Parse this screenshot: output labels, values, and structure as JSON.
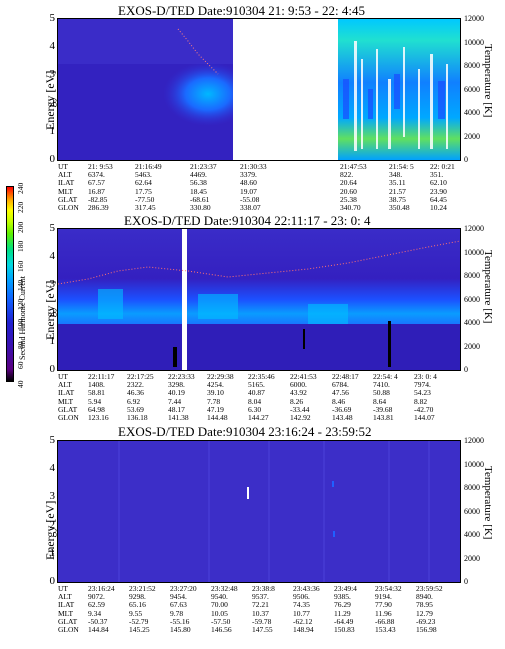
{
  "panels": [
    {
      "title": "EXOS-D/TED  Date:910304  21: 9:53 - 22: 4:45",
      "ylabel": "Energy [eV]",
      "rlabel": "Temperature [K]",
      "yticks": [
        "5",
        "4",
        "3",
        "2",
        "1",
        "0"
      ],
      "rticks": [
        "12000",
        "10000",
        "8000",
        "6000",
        "4000",
        "2000",
        "0"
      ],
      "ephem_labels": [
        "UT",
        "ALT",
        "ILAT",
        "MLT",
        "GLAT",
        "GLON"
      ],
      "ephem_cols": [
        [
          "21: 9:53",
          "6374.",
          "67.57",
          "16.87",
          "-82.85",
          "286.39"
        ],
        [
          "21:16:49",
          "5463.",
          "62.64",
          "17.75",
          "-77.50",
          "317.45"
        ],
        [
          "21:23:37",
          "4469.",
          "56.38",
          "18.45",
          "-68.61",
          "330.80"
        ],
        [
          "21:30:33",
          "3379.",
          "48.60",
          "19.07",
          "-55.08",
          "338.07"
        ],
        [
          "21:47:53",
          "822.",
          "20.64",
          "20.60",
          "25.38",
          "340.70"
        ],
        [
          "21:54: 5",
          "348.",
          "35.11",
          "21.57",
          "38.75",
          "350.48"
        ],
        [
          "22: 0:21",
          "351.",
          "62.10",
          "23.90",
          "64.45",
          "10.24"
        ]
      ]
    },
    {
      "title": "EXOS-D/TED    Date:910304   22:11:17 - 23: 0: 4",
      "ylabel": "Energy [eV]",
      "rlabel": "Temperature [K]",
      "yticks": [
        "5",
        "4",
        "3",
        "2",
        "1",
        "0"
      ],
      "rticks": [
        "12000",
        "10000",
        "8000",
        "6000",
        "4000",
        "2000",
        "0"
      ],
      "ephem_labels": [
        "UT",
        "ALT",
        "ILAT",
        "MLT",
        "GLAT",
        "GLON"
      ],
      "ephem_cols": [
        [
          "22:11:17",
          "1408.",
          "58.81",
          "5.94",
          "64.98",
          "123.16"
        ],
        [
          "22:17:25",
          "2322.",
          "46.36",
          "6.92",
          "53.69",
          "136.18"
        ],
        [
          "22:23:33",
          "3298.",
          "40.19",
          "7.44",
          "48.17",
          "141.38"
        ],
        [
          "22:29:38",
          "4254.",
          "39.10",
          "7.78",
          "47.19",
          "144.48"
        ],
        [
          "22:35:46",
          "5165.",
          "40.87",
          "8.04",
          "6.30",
          "144.27"
        ],
        [
          "22:41:53",
          "6000.",
          "43.92",
          "8.26",
          "-33.44",
          "142.92"
        ],
        [
          "22:48:17",
          "6784.",
          "47.56",
          "8.46",
          "-36.69",
          "143.48"
        ],
        [
          "22:54: 4",
          "7410.",
          "50.88",
          "8.64",
          "-39.68",
          "143.81"
        ],
        [
          "23: 0: 4",
          "7974.",
          "54.23",
          "8.82",
          "-42.70",
          "144.07"
        ]
      ]
    },
    {
      "title": "EXOS-D/TED  Date:910304  23:16:24 - 23:59:52",
      "ylabel": "Energy [eV]",
      "rlabel": "Temperature [K]",
      "yticks": [
        "5",
        "4",
        "3",
        "2",
        "1",
        "0"
      ],
      "rticks": [
        "12000",
        "10000",
        "8000",
        "6000",
        "4000",
        "2000",
        "0"
      ],
      "ephem_labels": [
        "UT",
        "ALT",
        "ILAT",
        "MLT",
        "GLAT",
        "GLON"
      ],
      "ephem_cols": [
        [
          "23:16:24",
          "9072.",
          "62.59",
          "9.34",
          "-50.37",
          "144.84"
        ],
        [
          "23:21:52",
          "9298.",
          "65.16",
          "9.55",
          "-52.79",
          "145.25"
        ],
        [
          "23:27:20",
          "9454.",
          "67.63",
          "9.78",
          "-55.16",
          "145.80"
        ],
        [
          "23:32:48",
          "9540.",
          "70.00",
          "10.05",
          "-57.50",
          "146.56"
        ],
        [
          "23:38:8",
          "9537.",
          "72.21",
          "10.37",
          "-59.78",
          "147.55"
        ],
        [
          "23:43:36",
          "9506.",
          "74.35",
          "10.77",
          "-62.12",
          "148.94"
        ],
        [
          "23:49:4",
          "9385.",
          "76.29",
          "11.29",
          "-64.49",
          "150.83"
        ],
        [
          "23:54:32",
          "9194.",
          "77.90",
          "11.96",
          "-66.88",
          "153.43"
        ],
        [
          "23:59:52",
          "8940.",
          "78.95",
          "12.79",
          "-69.23",
          "156.98"
        ]
      ]
    }
  ],
  "colorbar": {
    "label": "Second Harmonic Current",
    "ticks": [
      "40",
      "60",
      "80",
      "100",
      "120",
      "140",
      "160",
      "180",
      "200",
      "220",
      "240"
    ],
    "colors": [
      "#000000",
      "#5a0080",
      "#3a10b0",
      "#2020d0",
      "#1060ff",
      "#00a0ff",
      "#00d8e0",
      "#00e080",
      "#60f000",
      "#c0ff00",
      "#ffff00",
      "#ffb000",
      "#ff5000",
      "#ff0000"
    ]
  },
  "chart_data": [
    {
      "type": "heatmap",
      "title": "EXOS-D/TED  Date:910304  21: 9:53 - 22: 4:45",
      "xlabel": "UT",
      "ylabel": "Energy [eV]",
      "y2label": "Temperature [K]",
      "ylim": [
        0,
        5
      ],
      "y2lim": [
        0,
        12000
      ],
      "x_ticks": [
        "21: 9:53",
        "21:16:49",
        "21:23:37",
        "21:30:33",
        "21:47:53",
        "21:54: 5",
        "22: 0:21"
      ],
      "data_gap": [
        "21:33",
        "21:47"
      ]
    },
    {
      "type": "heatmap",
      "title": "EXOS-D/TED    Date:910304   22:11:17 - 23: 0: 4",
      "xlabel": "UT",
      "ylabel": "Energy [eV]",
      "y2label": "Temperature [K]",
      "ylim": [
        0,
        5
      ],
      "y2lim": [
        0,
        12000
      ],
      "x_ticks": [
        "22:11:17",
        "22:17:25",
        "22:23:33",
        "22:29:38",
        "22:35:46",
        "22:41:53",
        "22:48:17",
        "22:54: 4",
        "23: 0: 4"
      ]
    },
    {
      "type": "heatmap",
      "title": "EXOS-D/TED  Date:910304  23:16:24 - 23:59:52",
      "xlabel": "UT",
      "ylabel": "Energy [eV]",
      "y2label": "Temperature [K]",
      "ylim": [
        0,
        5
      ],
      "y2lim": [
        0,
        12000
      ],
      "x_ticks": [
        "23:16:24",
        "23:21:52",
        "23:27:20",
        "23:32:48",
        "23:38:8",
        "23:43:36",
        "23:49:4",
        "23:54:32",
        "23:59:52"
      ]
    }
  ]
}
